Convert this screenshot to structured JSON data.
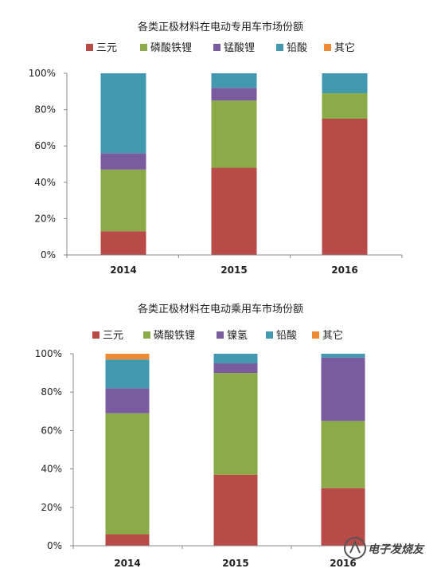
{
  "chart_data": [
    {
      "type": "bar",
      "stacked": true,
      "title": "各类正极材料在电动专用车市场份额",
      "categories": [
        "2014",
        "2015",
        "2016"
      ],
      "ylim": [
        0,
        100
      ],
      "yticks": [
        "0%",
        "20%",
        "40%",
        "60%",
        "80%",
        "100%"
      ],
      "legend": "top",
      "series": [
        {
          "name": "三元",
          "color": "#B84A47",
          "values": [
            13,
            48,
            75
          ]
        },
        {
          "name": "磷酸铁锂",
          "color": "#8BAA48",
          "values": [
            34,
            37,
            14
          ]
        },
        {
          "name": "锰酸锂",
          "color": "#7A5BA0",
          "values": [
            9,
            7,
            0
          ]
        },
        {
          "name": "铅酸",
          "color": "#4298AF",
          "values": [
            44,
            8,
            11
          ]
        },
        {
          "name": "其它",
          "color": "#EE8A34",
          "values": [
            0,
            0,
            0
          ]
        }
      ]
    },
    {
      "type": "bar",
      "stacked": true,
      "title": "各类正极材料在电动乘用车市场份额",
      "categories": [
        "2014",
        "2015",
        "2016"
      ],
      "ylim": [
        0,
        100
      ],
      "yticks": [
        "0%",
        "20%",
        "40%",
        "60%",
        "80%",
        "100%"
      ],
      "legend": "top",
      "series": [
        {
          "name": "三元",
          "color": "#B84A47",
          "values": [
            6,
            37,
            30
          ]
        },
        {
          "name": "磷酸铁锂",
          "color": "#8BAA48",
          "values": [
            63,
            53,
            35
          ]
        },
        {
          "name": "镍氢",
          "color": "#7A5BA0",
          "values": [
            13,
            5,
            33
          ]
        },
        {
          "name": "铅酸",
          "color": "#4298AF",
          "values": [
            15,
            5,
            2
          ]
        },
        {
          "name": "其它",
          "color": "#EE8A34",
          "values": [
            3,
            0,
            0
          ]
        }
      ]
    }
  ],
  "watermark": {
    "text": "电子发烧友"
  }
}
